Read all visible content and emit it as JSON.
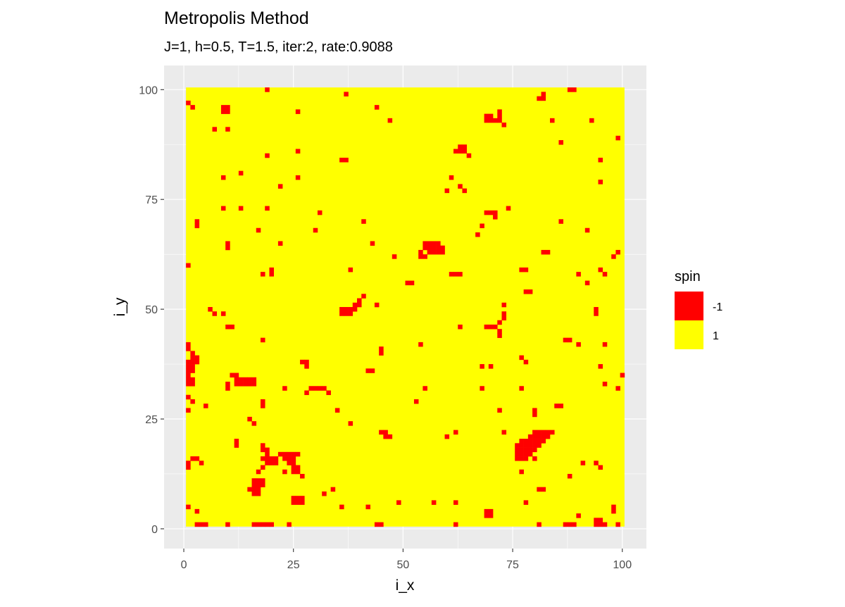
{
  "chart_data": {
    "type": "tile",
    "title": "Metropolis Method",
    "subtitle": "J=1, h=0.5, T=1.5, iter:2, rate:0.9088",
    "x_label": "i_x",
    "y_label": "i_y",
    "xlim": [
      -4.5,
      105.5
    ],
    "ylim": [
      -4.5,
      105.5
    ],
    "xticks": [
      0,
      25,
      50,
      75,
      100
    ],
    "yticks": [
      0,
      25,
      50,
      75,
      100
    ],
    "xminor": [
      12.5,
      37.5,
      62.5,
      87.5
    ],
    "yminor": [
      12.5,
      37.5,
      62.5,
      87.5
    ],
    "grid": true,
    "tile_range": {
      "x": [
        1,
        100
      ],
      "y": [
        1,
        100
      ]
    },
    "legend_title": "spin",
    "legend_position": "right",
    "series": [
      {
        "name": "-1",
        "value": -1,
        "color": "#ff0000",
        "x": [
          19,
          37,
          44,
          47,
          26,
          1,
          2,
          9,
          10,
          9,
          10,
          7,
          10,
          82,
          81,
          82,
          88,
          89,
          69,
          70,
          72,
          69,
          70,
          71,
          72,
          73,
          72,
          84,
          93,
          99,
          86,
          63,
          64,
          62,
          63,
          64,
          65,
          19,
          26,
          36,
          37,
          95,
          61,
          63,
          60,
          13,
          9,
          26,
          22,
          95,
          64,
          9,
          13,
          19,
          31,
          69,
          70,
          71,
          71,
          74,
          86,
          68,
          3,
          41,
          17,
          30,
          67,
          92,
          3,
          54,
          55,
          56,
          57,
          58,
          55,
          56,
          57,
          58,
          59,
          56,
          57,
          58,
          59,
          54,
          55,
          10,
          10,
          22,
          43,
          48,
          82,
          83,
          99,
          98,
          1,
          20,
          20,
          18,
          38,
          61,
          62,
          63,
          77,
          78,
          95,
          96,
          90,
          51,
          52,
          92,
          36,
          37,
          38,
          39,
          36,
          37,
          38,
          39,
          40,
          41,
          40,
          78,
          79,
          44,
          6,
          7,
          9,
          73,
          94,
          94,
          10,
          11,
          63,
          69,
          70,
          71,
          72,
          73,
          73,
          72,
          72,
          18,
          54,
          45,
          45,
          87,
          88,
          90,
          96,
          1,
          1,
          2,
          2,
          3,
          1,
          2,
          3,
          1,
          2,
          1,
          2,
          1,
          1,
          2,
          1,
          2,
          27,
          28,
          28,
          42,
          43,
          68,
          70,
          77,
          78,
          95,
          12,
          13,
          14,
          15,
          16,
          12,
          13,
          14,
          15,
          16,
          11,
          12,
          10,
          10,
          29,
          30,
          31,
          32,
          28,
          33,
          23,
          55,
          68,
          77,
          96,
          99,
          100,
          1,
          2,
          18,
          18,
          5,
          53,
          1,
          35,
          72,
          80,
          80,
          86,
          85,
          15,
          16,
          38,
          45,
          46,
          46,
          47,
          60,
          62,
          73,
          12,
          12,
          80,
          81,
          82,
          83,
          84,
          79,
          80,
          81,
          82,
          83,
          77,
          78,
          79,
          80,
          81,
          82,
          76,
          77,
          78,
          79,
          80,
          81,
          76,
          77,
          78,
          79,
          80,
          76,
          77,
          78,
          79,
          76,
          77,
          78,
          80,
          18,
          18,
          19,
          19,
          22,
          23,
          24,
          25,
          26,
          18,
          19,
          20,
          21,
          23,
          24,
          25,
          19,
          20,
          21,
          24,
          25,
          18,
          25,
          26,
          26,
          27,
          17,
          23,
          25,
          2,
          3,
          4,
          1,
          1,
          91,
          94,
          95,
          88,
          77,
          81,
          82,
          16,
          17,
          18,
          16,
          17,
          18,
          15,
          16,
          17,
          16,
          17,
          32,
          34,
          25,
          26,
          27,
          25,
          26,
          27,
          42,
          49,
          57,
          62,
          78,
          90,
          98,
          98,
          1,
          3,
          36,
          69,
          70,
          69,
          70,
          3,
          4,
          5,
          16,
          17,
          18,
          19,
          20,
          10,
          24,
          44,
          45,
          62,
          81,
          87,
          88,
          89,
          94,
          95,
          94,
          95,
          96,
          99
        ],
        "y": [
          100,
          99,
          96,
          93,
          95,
          97,
          96,
          96,
          96,
          95,
          95,
          91,
          91,
          99,
          98,
          98,
          100,
          100,
          94,
          94,
          95,
          93,
          93,
          93,
          93,
          92,
          94,
          93,
          93,
          89,
          88,
          87,
          87,
          86,
          86,
          86,
          85,
          85,
          86,
          84,
          84,
          84,
          80,
          78,
          77,
          81,
          80,
          80,
          78,
          79,
          77,
          73,
          73,
          73,
          72,
          72,
          72,
          72,
          71,
          73,
          70,
          69,
          70,
          70,
          68,
          68,
          67,
          68,
          69,
          63,
          64,
          65,
          65,
          65,
          65,
          64,
          64,
          64,
          64,
          63,
          63,
          63,
          63,
          62,
          62,
          64,
          65,
          65,
          65,
          62,
          63,
          63,
          63,
          62,
          60,
          59,
          58,
          58,
          59,
          58,
          58,
          58,
          59,
          59,
          59,
          58,
          58,
          56,
          56,
          56,
          50,
          50,
          50,
          50,
          49,
          49,
          49,
          51,
          52,
          53,
          51,
          54,
          54,
          51,
          50,
          49,
          49,
          51,
          49,
          50,
          46,
          46,
          46,
          46,
          46,
          46,
          47,
          48,
          49,
          45,
          44,
          43,
          42,
          41,
          40,
          43,
          43,
          42,
          42,
          42,
          41,
          40,
          39,
          39,
          38,
          38,
          38,
          37,
          37,
          36,
          36,
          35,
          34,
          34,
          33,
          33,
          38,
          38,
          37,
          36,
          36,
          37,
          37,
          39,
          38,
          37,
          34,
          34,
          34,
          34,
          34,
          33,
          33,
          33,
          33,
          33,
          35,
          35,
          33,
          32,
          32,
          32,
          32,
          32,
          31,
          31,
          32,
          32,
          32,
          32,
          33,
          32,
          35,
          30,
          29,
          29,
          28,
          28,
          29,
          27,
          27,
          27,
          27,
          26,
          28,
          28,
          25,
          24,
          24,
          22,
          22,
          21,
          21,
          21,
          22,
          22,
          20,
          19,
          22,
          22,
          22,
          22,
          22,
          21,
          21,
          21,
          21,
          21,
          20,
          20,
          20,
          20,
          20,
          20,
          19,
          19,
          19,
          19,
          19,
          19,
          18,
          18,
          18,
          18,
          18,
          17,
          17,
          17,
          17,
          16,
          16,
          16,
          16,
          19,
          18,
          18,
          17,
          17,
          17,
          17,
          17,
          17,
          16,
          16,
          16,
          16,
          16,
          16,
          16,
          15,
          15,
          15,
          15,
          15,
          14,
          14,
          14,
          13,
          12,
          13,
          13,
          13,
          16,
          16,
          15,
          14,
          15,
          15,
          15,
          14,
          12,
          13,
          9,
          9,
          11,
          11,
          11,
          10,
          10,
          10,
          9,
          9,
          9,
          8,
          8,
          8,
          9,
          7,
          7,
          7,
          6,
          6,
          6,
          5,
          6,
          6,
          6,
          6,
          3,
          5,
          4,
          5,
          4,
          5,
          4,
          4,
          3,
          3,
          1,
          1,
          1,
          1,
          1,
          1,
          1,
          1,
          1,
          1,
          1,
          1,
          1,
          1,
          1,
          1,
          1,
          2,
          2,
          1,
          1,
          1,
          1
        ]
      },
      {
        "name": "1",
        "value": 1,
        "color": "#ffff00"
      }
    ]
  }
}
